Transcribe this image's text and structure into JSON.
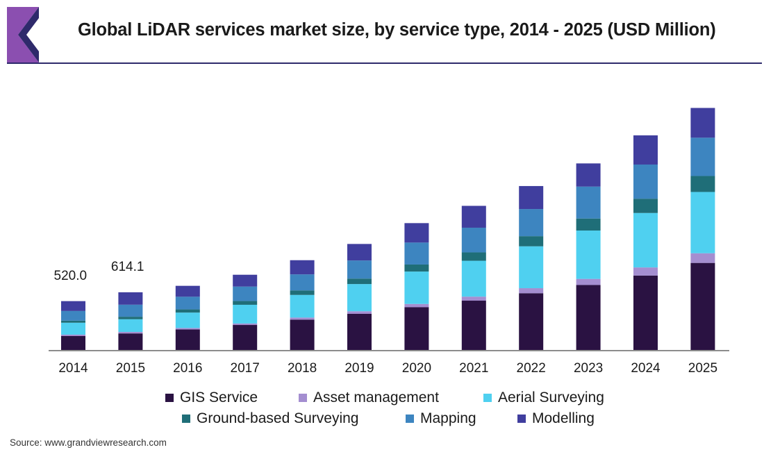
{
  "header": {
    "title": "Global LiDAR services market size, by service type, 2014 - 2025 (USD Million)"
  },
  "source": "Source: www.grandviewresearch.com",
  "colors": {
    "logo_dark": "#2e2a6b",
    "logo_light": "#8b4fb0",
    "rule": "#2e2a6b"
  },
  "chart_data": {
    "type": "bar",
    "stacked": true,
    "title": "Global LiDAR services market size, by service type, 2014 - 2025 (USD Million)",
    "xlabel": "",
    "ylabel": "",
    "grid": false,
    "legend_position": "bottom",
    "categories": [
      "2014",
      "2015",
      "2016",
      "2017",
      "2018",
      "2019",
      "2020",
      "2021",
      "2022",
      "2023",
      "2024",
      "2025"
    ],
    "series": [
      {
        "name": "GIS Service",
        "color": "#2a1242",
        "values": [
          148,
          176,
          218,
          266,
          323,
          385,
          455,
          525,
          604,
          692,
          792,
          927
        ]
      },
      {
        "name": "Asset management",
        "color": "#a48ed0",
        "values": [
          15,
          16,
          16,
          16,
          22,
          27,
          35,
          43,
          54,
          65,
          87,
          103
        ]
      },
      {
        "name": "Aerial Surveying",
        "color": "#4fd0f0",
        "values": [
          127,
          135,
          164,
          199,
          241,
          290,
          345,
          382,
          446,
          515,
          580,
          653
        ]
      },
      {
        "name": "Ground-based Surveying",
        "color": "#1f6e78",
        "values": [
          22,
          27,
          34,
          40,
          48,
          58,
          75,
          89,
          108,
          128,
          152,
          170
        ]
      },
      {
        "name": "Mapping",
        "color": "#3d85c0",
        "values": [
          103,
          128,
          135,
          154,
          171,
          193,
          234,
          263,
          289,
          340,
          364,
          408
        ]
      },
      {
        "name": "Modelling",
        "color": "#403e9e",
        "values": [
          105,
          132,
          116,
          126,
          151,
          176,
          207,
          233,
          245,
          247,
          311,
          317
        ]
      }
    ],
    "annotations": [
      {
        "category": "2014",
        "text": "520.0"
      },
      {
        "category": "2015",
        "text": "614.1"
      }
    ]
  }
}
